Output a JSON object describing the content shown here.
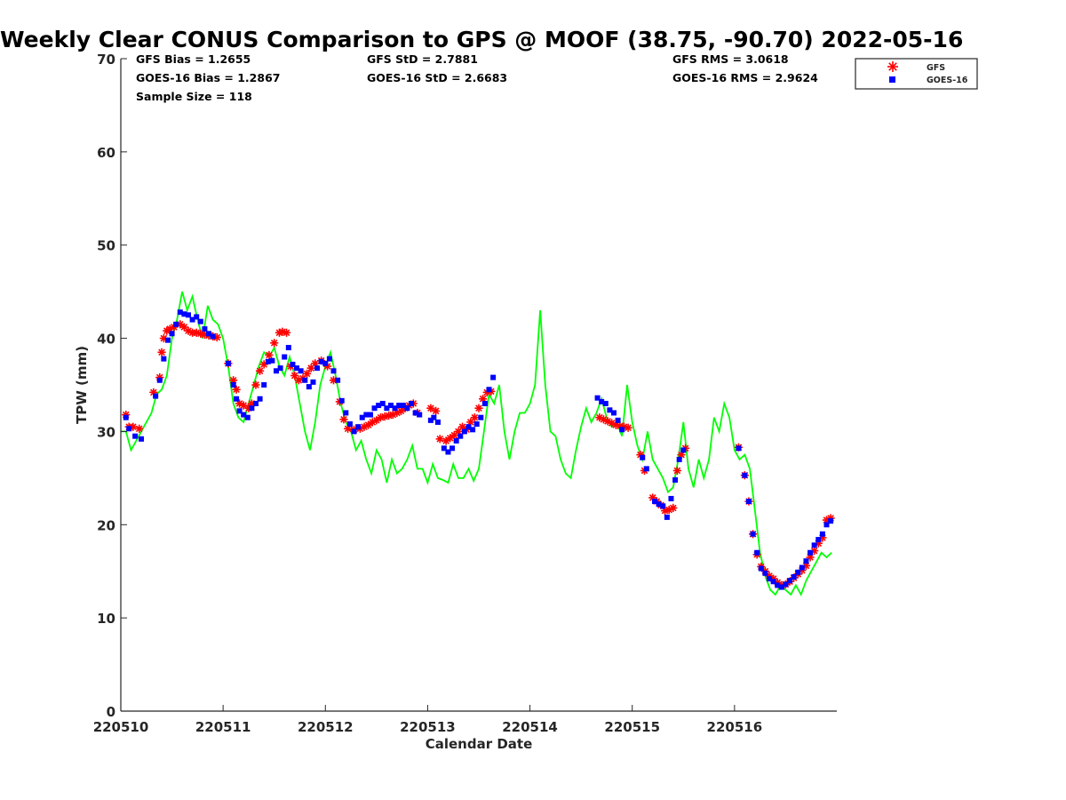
{
  "title": "Weekly Clear CONUS Comparison to GPS @ MOOF (38.75, -90.70) 2022-05-16",
  "stats": {
    "gfs_bias": "GFS Bias = 1.2655",
    "goes_bias": "GOES-16 Bias = 1.2867",
    "sample_size": "Sample Size = 118",
    "gfs_std": "GFS StD = 2.7881",
    "goes_std": "GOES-16 StD = 2.6683",
    "gfs_rms": "GFS RMS = 3.0618",
    "goes_rms": "GOES-16 RMS = 2.9624"
  },
  "legend": {
    "gfs": "GFS",
    "goes": "GOES-16"
  },
  "colors": {
    "gps": "#00ff00",
    "gfs": "#ff0000",
    "goes": "#0000ff",
    "axis": "#262626"
  },
  "chart_data": {
    "type": "scatter",
    "xlabel": "Calendar Date",
    "ylabel": "TPW (mm)",
    "xlim": [
      0,
      7.0
    ],
    "ylim": [
      0,
      70
    ],
    "xticks": [
      0,
      1,
      2,
      3,
      4,
      5,
      6
    ],
    "xtick_labels": [
      "220510",
      "220511",
      "220512",
      "220513",
      "220514",
      "220515",
      "220516"
    ],
    "yticks": [
      0,
      10,
      20,
      30,
      40,
      50,
      60,
      70
    ],
    "series": [
      {
        "name": "GPS",
        "style": "line",
        "color": "#00ff00",
        "x": [
          0.0,
          0.05,
          0.1,
          0.15,
          0.2,
          0.25,
          0.3,
          0.35,
          0.4,
          0.45,
          0.5,
          0.55,
          0.6,
          0.65,
          0.7,
          0.75,
          0.8,
          0.85,
          0.9,
          0.95,
          1.0,
          1.05,
          1.1,
          1.15,
          1.2,
          1.25,
          1.3,
          1.35,
          1.4,
          1.45,
          1.5,
          1.55,
          1.6,
          1.65,
          1.7,
          1.75,
          1.8,
          1.85,
          1.9,
          1.95,
          2.0,
          2.05,
          2.1,
          2.15,
          2.2,
          2.25,
          2.3,
          2.35,
          2.4,
          2.45,
          2.5,
          2.55,
          2.6,
          2.65,
          2.7,
          2.75,
          2.8,
          2.85,
          2.9,
          2.95,
          3.0,
          3.05,
          3.1,
          3.15,
          3.2,
          3.25,
          3.3,
          3.35,
          3.4,
          3.45,
          3.5,
          3.55,
          3.6,
          3.65,
          3.7,
          3.75,
          3.8,
          3.85,
          3.9,
          3.95,
          4.0,
          4.05,
          4.1,
          4.15,
          4.2,
          4.25,
          4.3,
          4.35,
          4.4,
          4.45,
          4.5,
          4.55,
          4.6,
          4.65,
          4.7,
          4.75,
          4.8,
          4.85,
          4.9,
          4.95,
          5.0,
          5.05,
          5.1,
          5.15,
          5.2,
          5.25,
          5.3,
          5.35,
          5.4,
          5.45,
          5.5,
          5.55,
          5.6,
          5.65,
          5.7,
          5.75,
          5.8,
          5.85,
          5.9,
          5.95,
          6.0,
          6.05,
          6.1,
          6.15,
          6.2,
          6.25,
          6.3,
          6.35,
          6.4,
          6.45,
          6.5,
          6.55,
          6.6,
          6.65,
          6.7,
          6.75,
          6.8,
          6.85,
          6.9,
          6.95
        ],
        "y": [
          30.0,
          30.0,
          28.0,
          29.0,
          30.0,
          31.0,
          32.0,
          34.0,
          34.5,
          36.0,
          40.0,
          42.0,
          45.0,
          43.0,
          44.5,
          42.0,
          40.0,
          43.5,
          42.0,
          41.5,
          40.0,
          37.0,
          33.0,
          31.5,
          31.0,
          33.0,
          35.0,
          37.0,
          38.5,
          38.0,
          39.0,
          37.0,
          36.0,
          38.0,
          36.0,
          33.0,
          30.0,
          28.0,
          31.0,
          35.0,
          37.0,
          38.5,
          36.0,
          33.0,
          31.0,
          30.0,
          28.0,
          29.0,
          27.0,
          25.5,
          28.0,
          27.0,
          24.5,
          27.0,
          25.5,
          26.0,
          27.0,
          28.5,
          26.0,
          26.0,
          24.5,
          26.5,
          25.0,
          24.8,
          24.5,
          26.5,
          25.0,
          25.0,
          26.0,
          24.7,
          26.0,
          30.0,
          34.0,
          33.0,
          35.0,
          30.0,
          27.0,
          30.0,
          32.0,
          32.0,
          33.0,
          35.0,
          43.0,
          35.0,
          30.0,
          29.5,
          27.0,
          25.5,
          25.0,
          28.0,
          30.5,
          32.5,
          31.0,
          32.0,
          33.5,
          31.5,
          30.5,
          31.0,
          29.5,
          35.0,
          31.0,
          28.5,
          27.0,
          30.0,
          27.0,
          26.0,
          25.0,
          23.5,
          24.0,
          27.0,
          31.0,
          26.0,
          24.0,
          27.0,
          25.0,
          27.0,
          31.5,
          30.0,
          33.0,
          31.5,
          28.0,
          27.0,
          27.5,
          26.0,
          21.5,
          17.0,
          14.5,
          13.0,
          12.5,
          13.5,
          13.0,
          12.5,
          13.5,
          12.5,
          14.0,
          15.0,
          16.0,
          17.0,
          16.5,
          17.0
        ]
      },
      {
        "name": "GFS",
        "style": "star",
        "color": "#ff0000",
        "x": [
          0.05,
          0.08,
          0.12,
          0.18,
          0.32,
          0.38,
          0.4,
          0.42,
          0.45,
          0.48,
          0.52,
          0.58,
          0.62,
          0.66,
          0.7,
          0.74,
          0.78,
          0.82,
          0.86,
          0.9,
          0.94,
          1.05,
          1.1,
          1.13,
          1.16,
          1.2,
          1.25,
          1.28,
          1.32,
          1.36,
          1.4,
          1.45,
          1.5,
          1.55,
          1.58,
          1.62,
          1.66,
          1.7,
          1.74,
          1.78,
          1.82,
          1.86,
          1.9,
          1.96,
          2.02,
          2.08,
          2.14,
          2.18,
          2.22,
          2.28,
          2.34,
          2.38,
          2.42,
          2.46,
          2.5,
          2.54,
          2.58,
          2.62,
          2.66,
          2.7,
          2.74,
          2.78,
          2.82,
          2.86,
          2.9,
          3.03,
          3.08,
          3.12,
          3.18,
          3.22,
          3.26,
          3.3,
          3.34,
          3.38,
          3.42,
          3.46,
          3.5,
          3.54,
          3.58,
          3.62,
          4.68,
          4.72,
          4.76,
          4.8,
          4.84,
          4.88,
          4.92,
          4.96,
          5.08,
          5.12,
          5.2,
          5.24,
          5.28,
          5.32,
          5.36,
          5.4,
          5.44,
          5.48,
          5.52,
          6.04,
          6.1,
          6.14,
          6.18,
          6.22,
          6.26,
          6.3,
          6.34,
          6.38,
          6.42,
          6.46,
          6.5,
          6.54,
          6.58,
          6.62,
          6.66,
          6.7,
          6.74,
          6.78,
          6.82,
          6.86,
          6.9,
          6.94
        ],
        "y": [
          31.8,
          30.5,
          30.5,
          30.3,
          34.2,
          35.8,
          38.5,
          40.0,
          40.8,
          41.0,
          41.2,
          41.5,
          41.2,
          40.8,
          40.6,
          40.6,
          40.5,
          40.4,
          40.3,
          40.2,
          40.1,
          37.3,
          35.5,
          34.5,
          33.0,
          32.8,
          32.5,
          33.0,
          35.0,
          36.5,
          37.2,
          38.2,
          39.5,
          40.6,
          40.7,
          40.6,
          37.0,
          36.0,
          35.5,
          35.7,
          36.2,
          36.8,
          37.3,
          37.6,
          37.0,
          35.5,
          33.2,
          31.3,
          30.3,
          30.2,
          30.3,
          30.5,
          30.7,
          31.0,
          31.2,
          31.5,
          31.6,
          31.7,
          31.8,
          32.0,
          32.2,
          32.5,
          32.8,
          33.0,
          32.0,
          32.5,
          32.2,
          29.2,
          29.0,
          29.3,
          29.6,
          30.0,
          30.5,
          30.2,
          31.0,
          31.5,
          32.5,
          33.5,
          34.2,
          34.3,
          31.5,
          31.3,
          31.1,
          30.9,
          30.7,
          30.6,
          30.5,
          30.4,
          27.5,
          25.8,
          22.9,
          22.5,
          22.1,
          21.5,
          21.6,
          21.8,
          25.8,
          27.5,
          28.2,
          28.3,
          25.3,
          22.5,
          19.0,
          16.8,
          15.5,
          15.0,
          14.5,
          14.2,
          13.8,
          13.5,
          13.6,
          13.9,
          14.3,
          14.7,
          15.1,
          15.6,
          16.5,
          17.2,
          18.0,
          18.6,
          20.5,
          20.7
        ]
      },
      {
        "name": "GOES-16",
        "style": "square",
        "color": "#0000ff",
        "x": [
          0.05,
          0.08,
          0.14,
          0.2,
          0.34,
          0.38,
          0.42,
          0.46,
          0.5,
          0.54,
          0.58,
          0.62,
          0.66,
          0.7,
          0.74,
          0.78,
          0.82,
          0.86,
          0.9,
          1.05,
          1.1,
          1.13,
          1.16,
          1.2,
          1.24,
          1.28,
          1.32,
          1.36,
          1.4,
          1.44,
          1.48,
          1.52,
          1.56,
          1.6,
          1.64,
          1.68,
          1.72,
          1.76,
          1.8,
          1.84,
          1.88,
          1.92,
          1.96,
          2.0,
          2.04,
          2.08,
          2.12,
          2.16,
          2.2,
          2.24,
          2.28,
          2.32,
          2.36,
          2.4,
          2.44,
          2.48,
          2.52,
          2.56,
          2.6,
          2.64,
          2.68,
          2.72,
          2.76,
          2.8,
          2.84,
          2.88,
          2.92,
          3.03,
          3.06,
          3.1,
          3.16,
          3.2,
          3.24,
          3.28,
          3.32,
          3.36,
          3.4,
          3.44,
          3.48,
          3.52,
          3.56,
          3.6,
          3.64,
          4.66,
          4.7,
          4.74,
          4.78,
          4.82,
          4.86,
          4.9,
          5.1,
          5.14,
          5.22,
          5.26,
          5.3,
          5.34,
          5.38,
          5.42,
          5.46,
          5.5,
          6.04,
          6.1,
          6.14,
          6.18,
          6.22,
          6.26,
          6.3,
          6.34,
          6.38,
          6.42,
          6.46,
          6.5,
          6.54,
          6.58,
          6.62,
          6.66,
          6.7,
          6.74,
          6.78,
          6.82,
          6.86,
          6.9,
          6.94
        ],
        "y": [
          31.5,
          30.3,
          29.5,
          29.2,
          33.8,
          35.5,
          37.8,
          39.8,
          40.5,
          41.5,
          42.8,
          42.6,
          42.5,
          42.0,
          42.3,
          41.8,
          41.0,
          40.5,
          40.2,
          37.3,
          35.0,
          33.5,
          32.2,
          31.8,
          31.5,
          32.5,
          33.0,
          33.5,
          35.0,
          37.5,
          37.6,
          36.5,
          36.8,
          38.0,
          39.0,
          37.2,
          36.8,
          36.5,
          35.5,
          34.8,
          35.3,
          36.8,
          37.5,
          37.3,
          37.8,
          36.5,
          35.5,
          33.3,
          32.0,
          30.8,
          30.0,
          30.5,
          31.5,
          31.8,
          31.8,
          32.5,
          32.8,
          33.0,
          32.5,
          32.8,
          32.5,
          32.8,
          32.8,
          32.5,
          33.0,
          32.0,
          31.8,
          31.2,
          31.5,
          31.0,
          28.2,
          27.8,
          28.2,
          29.0,
          29.5,
          30.0,
          30.5,
          30.2,
          30.8,
          31.5,
          33.0,
          34.5,
          35.8,
          33.6,
          33.2,
          33.0,
          32.3,
          32.0,
          31.2,
          30.2,
          27.2,
          26.0,
          22.5,
          22.2,
          22.0,
          20.8,
          22.8,
          24.8,
          27.0,
          28.0,
          28.2,
          25.3,
          22.5,
          19.0,
          17.0,
          15.3,
          14.8,
          14.2,
          13.9,
          13.5,
          13.3,
          13.6,
          14.0,
          14.4,
          14.9,
          15.4,
          16.1,
          17.0,
          17.8,
          18.4,
          19.0,
          20.0,
          20.4
        ]
      }
    ]
  }
}
